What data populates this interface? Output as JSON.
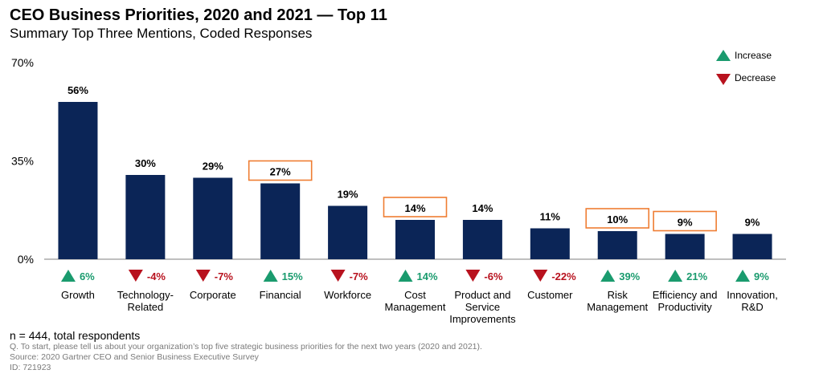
{
  "chart_data": {
    "type": "bar",
    "title": "CEO Business Priorities, 2020 and 2021 — Top 11",
    "subtitle": "Summary Top Three Mentions, Coded Responses",
    "ylim": [
      0,
      70
    ],
    "yticks": [
      "0%",
      "35%",
      "70%"
    ],
    "ytick_values": [
      0,
      35,
      70
    ],
    "bar_color": "#0b2557",
    "highlight_color": "#ef7d32",
    "increase_color": "#1a9b6e",
    "decrease_color": "#b8121e",
    "legend": {
      "position": "top-right",
      "increase": "Increase",
      "decrease": "Decrease"
    },
    "categories": [
      {
        "label": [
          "Growth"
        ],
        "value": 56,
        "value_label": "56%",
        "change": "6%",
        "direction": "up",
        "highlight": false
      },
      {
        "label": [
          "Technology-",
          "Related"
        ],
        "value": 30,
        "value_label": "30%",
        "change": "-4%",
        "direction": "down",
        "highlight": false
      },
      {
        "label": [
          "Corporate"
        ],
        "value": 29,
        "value_label": "29%",
        "change": "-7%",
        "direction": "down",
        "highlight": false
      },
      {
        "label": [
          "Financial"
        ],
        "value": 27,
        "value_label": "27%",
        "change": "15%",
        "direction": "up",
        "highlight": true
      },
      {
        "label": [
          "Workforce"
        ],
        "value": 19,
        "value_label": "19%",
        "change": "-7%",
        "direction": "down",
        "highlight": false
      },
      {
        "label": [
          "Cost",
          "Management"
        ],
        "value": 14,
        "value_label": "14%",
        "change": "14%",
        "direction": "up",
        "highlight": true
      },
      {
        "label": [
          "Product and",
          "Service",
          "Improvements"
        ],
        "value": 14,
        "value_label": "14%",
        "change": "-6%",
        "direction": "down",
        "highlight": false
      },
      {
        "label": [
          "Customer"
        ],
        "value": 11,
        "value_label": "11%",
        "change": "-22%",
        "direction": "down",
        "highlight": false
      },
      {
        "label": [
          "Risk",
          "Management"
        ],
        "value": 10,
        "value_label": "10%",
        "change": "39%",
        "direction": "up",
        "highlight": true
      },
      {
        "label": [
          "Efficiency and",
          "Productivity"
        ],
        "value": 9,
        "value_label": "9%",
        "change": "21%",
        "direction": "up",
        "highlight": true
      },
      {
        "label": [
          "Innovation,",
          "R&D"
        ],
        "value": 9,
        "value_label": "9%",
        "change": "9%",
        "direction": "up",
        "highlight": false
      }
    ]
  },
  "footer": {
    "n": "n = 444, total respondents",
    "question": "Q. To start, please tell us about your organization’s top five strategic business priorities for the next two years (2020 and 2021).",
    "source": "Source: 2020 Gartner CEO and Senior Business Executive Survey",
    "id": "ID: 721923"
  }
}
